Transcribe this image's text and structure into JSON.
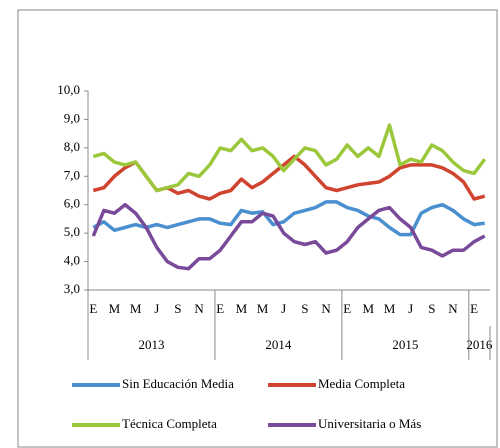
{
  "chart_data": {
    "type": "line",
    "categories": [
      "E",
      null,
      "M",
      null,
      "M",
      null,
      "J",
      null,
      "S",
      null,
      "N",
      null,
      "E",
      null,
      "M",
      null,
      "M",
      null,
      "J",
      null,
      "S",
      null,
      "N",
      null,
      "E",
      null,
      "M",
      null,
      "M",
      null,
      "J",
      null,
      "S",
      null,
      "N",
      null,
      "E",
      null
    ],
    "year_labels": [
      "2013",
      "2014",
      "2015",
      "2016"
    ],
    "series": [
      {
        "name": "Sin Educación Media",
        "color": "#4a8fd0",
        "values": [
          5.2,
          5.4,
          5.1,
          5.2,
          5.3,
          5.2,
          5.3,
          5.2,
          5.3,
          5.4,
          5.5,
          5.5,
          5.35,
          5.3,
          5.8,
          5.7,
          5.75,
          5.3,
          5.4,
          5.7,
          5.8,
          5.9,
          6.1,
          6.1,
          5.9,
          5.8,
          5.6,
          5.5,
          5.2,
          4.95,
          4.95,
          5.7,
          5.9,
          6.0,
          5.8,
          5.5,
          5.3,
          5.35
        ]
      },
      {
        "name": "Media Completa",
        "color": "#d0442f",
        "values": [
          6.5,
          6.6,
          7.0,
          7.3,
          7.5,
          7.0,
          6.5,
          6.6,
          6.4,
          6.5,
          6.3,
          6.2,
          6.4,
          6.5,
          6.9,
          6.6,
          6.8,
          7.1,
          7.4,
          7.7,
          7.4,
          7.0,
          6.6,
          6.5,
          6.6,
          6.7,
          6.75,
          6.8,
          7.0,
          7.3,
          7.4,
          7.4,
          7.4,
          7.3,
          7.1,
          6.8,
          6.2,
          6.3
        ]
      },
      {
        "name": "Técnica Completa",
        "color": "#9bc83b",
        "values": [
          7.7,
          7.8,
          7.5,
          7.4,
          7.5,
          7.0,
          6.5,
          6.6,
          6.7,
          7.1,
          7.0,
          7.4,
          8.0,
          7.9,
          8.3,
          7.9,
          8.0,
          7.7,
          7.2,
          7.6,
          8.0,
          7.9,
          7.4,
          7.6,
          8.1,
          7.7,
          8.0,
          7.7,
          8.8,
          7.4,
          7.6,
          7.5,
          8.1,
          7.9,
          7.5,
          7.2,
          7.1,
          7.6
        ]
      },
      {
        "name": "Universitaria o Más",
        "color": "#7a4a9a",
        "values": [
          4.9,
          5.8,
          5.7,
          6.0,
          5.7,
          5.2,
          4.5,
          4.0,
          3.8,
          3.75,
          4.1,
          4.1,
          4.4,
          4.9,
          5.4,
          5.4,
          5.7,
          5.6,
          5.0,
          4.7,
          4.6,
          4.7,
          4.3,
          4.4,
          4.7,
          5.2,
          5.5,
          5.8,
          5.9,
          5.5,
          5.2,
          4.5,
          4.4,
          4.2,
          4.4,
          4.4,
          4.7,
          4.9
        ]
      }
    ],
    "ylim": [
      3,
      10
    ],
    "yticks": [
      {
        "value": 3,
        "label": "3,0"
      },
      {
        "value": 4,
        "label": "4,0"
      },
      {
        "value": 5,
        "label": "5,0"
      },
      {
        "value": 6,
        "label": "6,0"
      },
      {
        "value": 7,
        "label": "7,0"
      },
      {
        "value": 8,
        "label": "8,0"
      },
      {
        "value": 9,
        "label": "9,0"
      },
      {
        "value": 10,
        "label": "10,0"
      }
    ],
    "grid": false
  }
}
